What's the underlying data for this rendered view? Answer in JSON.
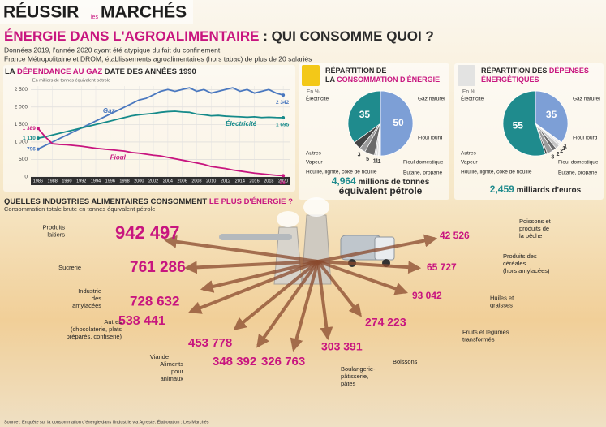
{
  "header": {
    "logo": [
      "RÉUSSIR",
      "les",
      "MARCHÉS"
    ],
    "title": [
      {
        "text": "ÉNERGIE DANS L'AGROALIMENTAIRE",
        "color": "#c8157f"
      },
      {
        "text": " : QUI CONSOMME QUOI ?",
        "color": "#2b2b2b"
      }
    ],
    "subtitle": [
      "Données 2019, l'année 2020 ayant été atypique du fait du confinement",
      "France Métropolitaine et DROM, établissements agroalimentaires (hors tabac) de plus de 20 salariés"
    ]
  },
  "chart_data": [
    {
      "type": "line",
      "title": [
        {
          "text": "LA ",
          "color": "#2b2b2b"
        },
        {
          "text": "DÉPENDANCE AU GAZ",
          "color": "#c8157f"
        },
        {
          "text": " DATE DES ANNÉES 1990",
          "color": "#2b2b2b"
        }
      ],
      "ylabel": "En milliers de tonnes équivalent pétrole",
      "x": [
        1986,
        1987,
        1988,
        1989,
        1990,
        1991,
        1992,
        1993,
        1994,
        1995,
        1996,
        1997,
        1998,
        1999,
        2000,
        2001,
        2002,
        2003,
        2004,
        2005,
        2006,
        2007,
        2008,
        2009,
        2010,
        2011,
        2012,
        2013,
        2014,
        2015,
        2016,
        2017,
        2018,
        2019,
        2020
      ],
      "xlim": [
        1985,
        2021
      ],
      "xticks": [
        1986,
        1988,
        1990,
        1992,
        1994,
        1996,
        1998,
        2000,
        2002,
        2004,
        2006,
        2008,
        2010,
        2012,
        2014,
        2016,
        2018,
        2020
      ],
      "ylim": [
        0,
        2600
      ],
      "yticks": [
        0,
        500,
        {
          "value": 1000,
          "label": "1 000"
        },
        {
          "value": 1500,
          "label": "1 500"
        },
        {
          "value": 2000,
          "label": "2 000"
        },
        {
          "value": 2500,
          "label": "2 500"
        }
      ],
      "grid": true,
      "series": [
        {
          "name": "Gaz",
          "color": "#4a78bf",
          "values": [
            796,
            900,
            1000,
            1100,
            1200,
            1300,
            1400,
            1500,
            1600,
            1700,
            1800,
            1900,
            2000,
            2100,
            2200,
            2250,
            2350,
            2450,
            2500,
            2450,
            2500,
            2550,
            2450,
            2500,
            2400,
            2450,
            2500,
            2550,
            2450,
            2500,
            2400,
            2450,
            2500,
            2400,
            2342
          ],
          "value_labels": [
            "796",
            null,
            null,
            null,
            null,
            null,
            null,
            null,
            null,
            null,
            null,
            null,
            null,
            null,
            null,
            null,
            null,
            null,
            null,
            null,
            null,
            null,
            null,
            null,
            null,
            null,
            null,
            null,
            null,
            null,
            null,
            null,
            null,
            null,
            "2 342"
          ]
        },
        {
          "name": "Électricité",
          "color": "#158a8a",
          "values": [
            1110,
            1150,
            1200,
            1250,
            1300,
            1350,
            1400,
            1450,
            1500,
            1550,
            1600,
            1650,
            1700,
            1750,
            1780,
            1800,
            1820,
            1850,
            1870,
            1880,
            1860,
            1850,
            1800,
            1780,
            1750,
            1760,
            1740,
            1730,
            1720,
            1710,
            1720,
            1700,
            1710,
            1700,
            1695
          ],
          "value_labels": [
            "1 110",
            null,
            null,
            null,
            null,
            null,
            null,
            null,
            null,
            null,
            null,
            null,
            null,
            null,
            null,
            null,
            null,
            null,
            null,
            null,
            null,
            null,
            null,
            null,
            null,
            null,
            null,
            null,
            null,
            null,
            null,
            null,
            null,
            null,
            "1 695"
          ]
        },
        {
          "name": "Fioul",
          "color": "#c8157f",
          "values": [
            1389,
            1150,
            950,
            930,
            920,
            900,
            880,
            850,
            820,
            800,
            780,
            760,
            740,
            700,
            680,
            650,
            620,
            600,
            560,
            520,
            480,
            440,
            400,
            360,
            300,
            270,
            240,
            200,
            170,
            140,
            110,
            90,
            70,
            50,
            38
          ],
          "value_labels": [
            "1 389",
            null,
            null,
            null,
            null,
            null,
            null,
            null,
            null,
            null,
            null,
            null,
            null,
            null,
            null,
            null,
            null,
            null,
            null,
            null,
            null,
            null,
            null,
            null,
            null,
            null,
            null,
            null,
            null,
            null,
            null,
            null,
            null,
            null,
            "38"
          ]
        }
      ]
    },
    {
      "type": "pie",
      "title": [
        [
          {
            "text": "RÉPARTITION DE",
            "color": "#2b2b2b"
          }
        ],
        [
          {
            "text": "LA ",
            "color": "#2b2b2b"
          },
          {
            "text": "CONSOMMATION D'ÉNERGIE",
            "color": "#c8157f"
          }
        ]
      ],
      "unit": "En %",
      "categories": [
        "Gaz naturel",
        "Fioul lourd",
        "Fioul domestique",
        "Butane, propane",
        "Houille, lignite, coke de houille",
        "Vapeur",
        "Autres",
        "Électricité"
      ],
      "values": [
        50,
        1,
        1,
        1,
        5,
        3,
        4,
        35
      ],
      "value_labels": [
        "50",
        "1",
        "1",
        "1",
        "5",
        "3",
        null,
        "35"
      ],
      "colors": [
        "#7d9fd6",
        "#f2f2f2",
        "#dddddd",
        "#c4c4c4",
        "#6b6b6b",
        "#9a9a9a",
        "#444444",
        "#1f8b8d"
      ],
      "total": [
        [
          {
            "text": "4,964",
            "color": "#1f8b8d"
          },
          {
            "text": " millions de tonnes",
            "color": "#2b2b2b"
          }
        ],
        [
          {
            "text": "équivalent pétrole",
            "color": "#2b2b2b"
          }
        ]
      ]
    },
    {
      "type": "pie",
      "title": [
        [
          {
            "text": "RÉPARTITION DES ",
            "color": "#2b2b2b"
          },
          {
            "text": "DÉPENSES",
            "color": "#c8157f"
          }
        ],
        [
          {
            "text": "ÉNERGÉTIQUES",
            "color": "#c8157f"
          }
        ]
      ],
      "unit": "En %",
      "categories": [
        "Gaz naturel",
        "Fioul lourd",
        "Fioul domestique",
        "Butane, propane",
        "Houille, lignite, coke de houille",
        "Vapeur",
        "Autres",
        "Électricité"
      ],
      "values": [
        35,
        1,
        1,
        2,
        2,
        3,
        1,
        55
      ],
      "value_labels": [
        "35",
        "1",
        "1",
        "2",
        "2",
        "3",
        null,
        "55"
      ],
      "colors": [
        "#7d9fd6",
        "#f2f2f2",
        "#dddddd",
        "#c4c4c4",
        "#6b6b6b",
        "#9a9a9a",
        "#444444",
        "#1f8b8d"
      ],
      "total": [
        [
          {
            "text": "2,459",
            "color": "#1f8b8d"
          },
          {
            "text": " milliards",
            "color": "#2b2b2b"
          },
          {
            "text": " d'euros",
            "color": "#2b2b2b"
          }
        ]
      ]
    }
  ],
  "industries": {
    "title": [
      {
        "text": "QUELLES INDUSTRIES ALIMENTAIRES CONSOMMENT ",
        "color": "#2b2b2b"
      },
      {
        "text": "LE PLUS D'ÉNERGIE ?",
        "color": "#c8157f"
      }
    ],
    "subtitle": "Consommation totale brute en tonnes équivalent pétrole",
    "items": [
      {
        "label": [
          "Produits",
          "laitiers"
        ],
        "value": "942 497"
      },
      {
        "label": [
          "Sucrerie"
        ],
        "value": "761 286"
      },
      {
        "label": [
          "Industrie",
          "des",
          "amylacées"
        ],
        "value": "728 632"
      },
      {
        "label": [
          "Autres",
          "(chocolaterie, plats",
          "préparés, confiserie)"
        ],
        "value": "538 441"
      },
      {
        "label": [
          "Viande"
        ],
        "value": "453 778"
      },
      {
        "label": [
          "Aliments",
          "pour",
          "animaux"
        ],
        "value": "348 392"
      },
      {
        "label": [
          "Boulangerie-",
          "pâtisserie,",
          "pâtes"
        ],
        "value": "326 763"
      },
      {
        "label": [
          "Boissons"
        ],
        "value": "303 391"
      },
      {
        "label": [
          "Fruits et légumes",
          "transformés"
        ],
        "value": "274 223"
      },
      {
        "label": [
          "Huiles et",
          "graisses"
        ],
        "value": "93 042"
      },
      {
        "label": [
          "Produits des",
          "céréales",
          "(hors amylacées)"
        ],
        "value": "65 727"
      },
      {
        "label": [
          "Poissons et",
          "produits de",
          "la pêche"
        ],
        "value": "42 526"
      }
    ]
  },
  "source": "Source : Enquête sur la consommation d'énergie dans l'industrie via Agreste. Élaboration : Les Marchés"
}
